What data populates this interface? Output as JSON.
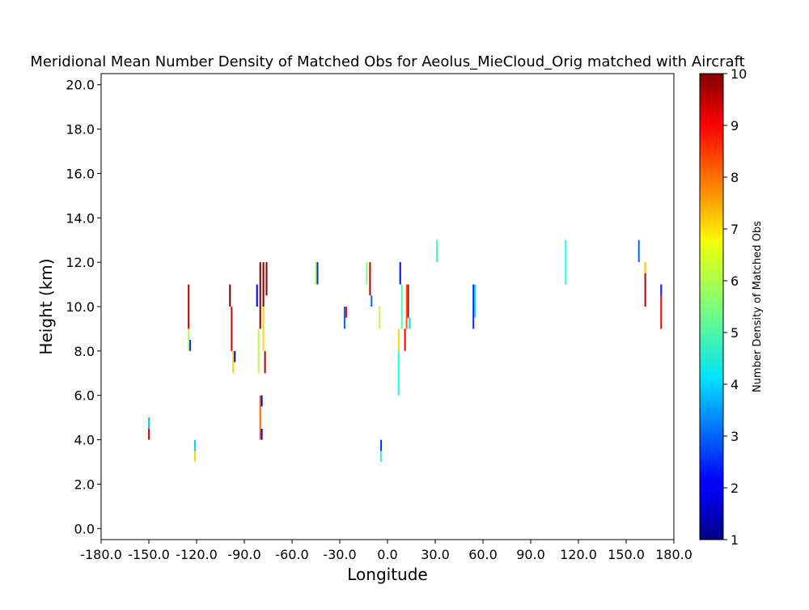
{
  "chart_data": {
    "type": "heatmap",
    "title": "Meridional Mean Number Density of Matched Obs for Aeolus_MieCloud_Orig matched with Aircraft",
    "xlabel": "Longitude",
    "ylabel": "Height (km)",
    "xlim": [
      -180,
      180
    ],
    "ylim": [
      -0.5,
      20.5
    ],
    "xticks": [
      -180,
      -150,
      -120,
      -90,
      -60,
      -30,
      0,
      30,
      60,
      90,
      120,
      150,
      180
    ],
    "xtick_labels": [
      "-180.0",
      "-150.0",
      "-120.0",
      "-90.0",
      "-60.0",
      "-30.0",
      "0.0",
      "30.0",
      "60.0",
      "90.0",
      "120.0",
      "150.0",
      "180.0"
    ],
    "yticks": [
      0,
      2,
      4,
      6,
      8,
      10,
      12,
      14,
      16,
      18,
      20
    ],
    "ytick_labels": [
      "0.0",
      "2.0",
      "4.0",
      "6.0",
      "8.0",
      "10.0",
      "12.0",
      "14.0",
      "16.0",
      "18.0",
      "20.0"
    ],
    "colorbar": {
      "label": "Number Density of Matched Obs",
      "range": [
        1,
        10
      ],
      "ticks": [
        1,
        2,
        3,
        4,
        5,
        6,
        7,
        8,
        9,
        10
      ],
      "tick_labels": [
        "1",
        "2",
        "3",
        "4",
        "5",
        "6",
        "7",
        "8",
        "9",
        "10"
      ],
      "colormap": "jet"
    },
    "cells": [
      {
        "lon": -150,
        "h0": 4,
        "h1": 5,
        "v": 4
      },
      {
        "lon": -150,
        "h0": 4,
        "h1": 4.5,
        "v": 9
      },
      {
        "lon": -125,
        "h0": 9,
        "h1": 11,
        "v": 9.5
      },
      {
        "lon": -125,
        "h0": 8,
        "h1": 9,
        "v": 6
      },
      {
        "lon": -124,
        "h0": 8,
        "h1": 8.5,
        "v": 2.5
      },
      {
        "lon": -121,
        "h0": 3,
        "h1": 4,
        "v": 4
      },
      {
        "lon": -121,
        "h0": 3,
        "h1": 3.5,
        "v": 7
      },
      {
        "lon": -99,
        "h0": 10,
        "h1": 11,
        "v": 10
      },
      {
        "lon": -98,
        "h0": 8,
        "h1": 10,
        "v": 9
      },
      {
        "lon": -97,
        "h0": 7,
        "h1": 8,
        "v": 7
      },
      {
        "lon": -96,
        "h0": 7.5,
        "h1": 8,
        "v": 2
      },
      {
        "lon": -82,
        "h0": 10,
        "h1": 11,
        "v": 2
      },
      {
        "lon": -81,
        "h0": 7,
        "h1": 9,
        "v": 6
      },
      {
        "lon": -80,
        "h0": 9,
        "h1": 12,
        "v": 10
      },
      {
        "lon": -80,
        "h0": 4,
        "h1": 6,
        "v": 8
      },
      {
        "lon": -79,
        "h0": 4,
        "h1": 4.5,
        "v": 2
      },
      {
        "lon": -79,
        "h0": 5.5,
        "h1": 6,
        "v": 2
      },
      {
        "lon": -78,
        "h0": 10,
        "h1": 12,
        "v": 10
      },
      {
        "lon": -78,
        "h0": 8,
        "h1": 10,
        "v": 7
      },
      {
        "lon": -77,
        "h0": 7,
        "h1": 8,
        "v": 9.5
      },
      {
        "lon": -76,
        "h0": 10.5,
        "h1": 12,
        "v": 10
      },
      {
        "lon": -45,
        "h0": 11,
        "h1": 12,
        "v": 6
      },
      {
        "lon": -44,
        "h0": 11,
        "h1": 12,
        "v": 2.5
      },
      {
        "lon": -27,
        "h0": 9,
        "h1": 10,
        "v": 3
      },
      {
        "lon": -26,
        "h0": 9.5,
        "h1": 10,
        "v": 9
      },
      {
        "lon": -13,
        "h0": 11,
        "h1": 12,
        "v": 5.5
      },
      {
        "lon": -11,
        "h0": 10.5,
        "h1": 12,
        "v": 9.5
      },
      {
        "lon": -10,
        "h0": 10,
        "h1": 10.5,
        "v": 3
      },
      {
        "lon": -5,
        "h0": 9,
        "h1": 10,
        "v": 6
      },
      {
        "lon": -4,
        "h0": 3,
        "h1": 4,
        "v": 2.5
      },
      {
        "lon": -4,
        "h0": 3,
        "h1": 3.5,
        "v": 5
      },
      {
        "lon": 7,
        "h0": 6,
        "h1": 8,
        "v": 4.5
      },
      {
        "lon": 7,
        "h0": 8,
        "h1": 9,
        "v": 7
      },
      {
        "lon": 8,
        "h0": 11,
        "h1": 12,
        "v": 2
      },
      {
        "lon": 9,
        "h0": 9,
        "h1": 11,
        "v": 5
      },
      {
        "lon": 11,
        "h0": 8,
        "h1": 9,
        "v": 9
      },
      {
        "lon": 12,
        "h0": 9,
        "h1": 11,
        "v": 8
      },
      {
        "lon": 13,
        "h0": 9.5,
        "h1": 11,
        "v": 9.5
      },
      {
        "lon": 14,
        "h0": 9,
        "h1": 9.5,
        "v": 4
      },
      {
        "lon": 31,
        "h0": 12,
        "h1": 13,
        "v": 5
      },
      {
        "lon": 54,
        "h0": 9,
        "h1": 11,
        "v": 2.5
      },
      {
        "lon": 55,
        "h0": 9.5,
        "h1": 11,
        "v": 4
      },
      {
        "lon": 112,
        "h0": 11,
        "h1": 13,
        "v": 4.5
      },
      {
        "lon": 158,
        "h0": 12,
        "h1": 13,
        "v": 3
      },
      {
        "lon": 162,
        "h0": 10,
        "h1": 12,
        "v": 9.5
      },
      {
        "lon": 162,
        "h0": 11.5,
        "h1": 12,
        "v": 7
      },
      {
        "lon": 172,
        "h0": 9,
        "h1": 11,
        "v": 9
      },
      {
        "lon": 172,
        "h0": 10.5,
        "h1": 11,
        "v": 2.5
      }
    ]
  }
}
